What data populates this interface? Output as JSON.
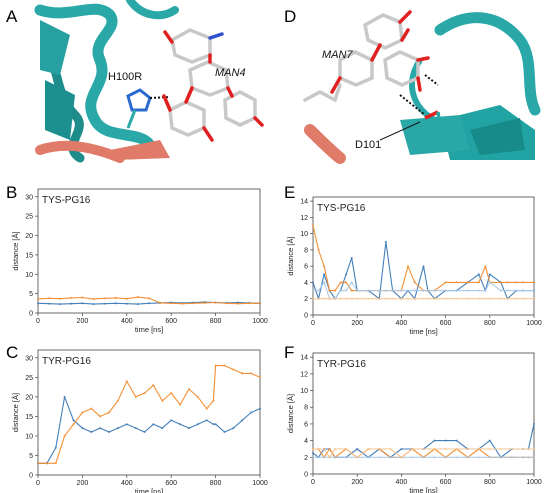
{
  "figure": {
    "panel_letters": [
      "A",
      "B",
      "C",
      "D",
      "E",
      "F"
    ],
    "structure_labels": {
      "A_residue": "H100R",
      "A_ligand": "MAN4",
      "D_residue": "D101",
      "D_ligand": "MAN7"
    },
    "colors": {
      "series_blue": "#3a78b5",
      "series_orange": "#f28a2a",
      "series_blue_light": "#a9c8e6",
      "series_orange_light": "#f7c48f",
      "ribbon": "#2aa8a8",
      "ribbon_salmon": "#e07b6a"
    }
  },
  "chart_data": [
    {
      "panel": "B",
      "type": "line",
      "title": "TYS-PG16",
      "xlabel": "time [ns]",
      "ylabel": "distance [Å]",
      "xlim": [
        0,
        1000
      ],
      "ylim": [
        0,
        32
      ],
      "xticks": [
        0,
        200,
        400,
        600,
        800,
        1000
      ],
      "yticks": [
        0,
        5,
        10,
        15,
        20,
        25,
        30
      ],
      "x": [
        0,
        50,
        100,
        150,
        200,
        250,
        300,
        350,
        400,
        450,
        500,
        550,
        600,
        650,
        700,
        750,
        800,
        850,
        900,
        950,
        1000
      ],
      "series": [
        {
          "values": [
            2.5,
            2.4,
            2.3,
            2.4,
            2.5,
            2.3,
            2.4,
            2.5,
            2.4,
            2.3,
            2.5,
            2.6,
            2.7,
            2.6,
            2.7,
            2.8,
            2.7,
            2.6,
            2.7,
            2.6,
            2.5
          ]
        },
        {
          "values": [
            3.6,
            3.8,
            3.7,
            3.9,
            4.0,
            3.6,
            3.8,
            3.9,
            3.7,
            4.1,
            3.8,
            2.6,
            2.5,
            2.4,
            2.5,
            2.6,
            2.7,
            2.5,
            2.4,
            2.5,
            2.5
          ]
        }
      ]
    },
    {
      "panel": "C",
      "type": "line",
      "title": "TYR-PG16",
      "xlabel": "time [ns]",
      "ylabel": "distance [Å]",
      "xlim": [
        0,
        1000
      ],
      "ylim": [
        0,
        32
      ],
      "xticks": [
        0,
        200,
        400,
        600,
        800,
        1000
      ],
      "yticks": [
        0,
        5,
        10,
        15,
        20,
        25,
        30
      ],
      "x": [
        0,
        40,
        80,
        120,
        160,
        200,
        240,
        280,
        320,
        360,
        400,
        440,
        480,
        520,
        560,
        600,
        640,
        680,
        720,
        760,
        790,
        800,
        840,
        880,
        920,
        960,
        1000
      ],
      "series": [
        {
          "values": [
            3,
            3,
            7,
            20,
            14,
            12,
            11,
            12,
            11,
            12,
            13,
            12,
            11,
            13,
            12,
            14,
            13,
            12,
            13,
            14,
            13,
            13,
            11,
            12,
            14,
            16,
            17
          ]
        },
        {
          "values": [
            3,
            3,
            3,
            10,
            13,
            16,
            17,
            15,
            16,
            19,
            24,
            20,
            21,
            23,
            19,
            21,
            18,
            22,
            20,
            17,
            19,
            28,
            28,
            27,
            26,
            26,
            25
          ]
        }
      ]
    },
    {
      "panel": "E",
      "type": "line",
      "title": "TYS-PG16",
      "xlabel": "time [ns]",
      "ylabel": "distance [Å]",
      "xlim": [
        0,
        1000
      ],
      "ylim": [
        0,
        14.5
      ],
      "xticks": [
        0,
        200,
        400,
        600,
        800,
        1000
      ],
      "yticks": [
        0,
        2,
        4,
        6,
        8,
        10,
        12,
        14
      ],
      "x": [
        0,
        25,
        50,
        75,
        100,
        125,
        150,
        175,
        200,
        250,
        300,
        330,
        360,
        400,
        430,
        460,
        500,
        520,
        550,
        600,
        650,
        700,
        750,
        780,
        800,
        850,
        880,
        920,
        950,
        1000
      ],
      "series": [
        {
          "values": [
            4,
            2,
            5,
            3,
            2,
            3,
            5,
            7,
            3,
            3,
            2,
            9,
            3,
            2,
            3,
            2,
            6,
            3,
            2,
            3,
            3,
            4,
            5,
            3,
            5,
            4,
            2,
            3,
            3,
            3
          ]
        },
        {
          "values": [
            11,
            8,
            6,
            3,
            3,
            4,
            4,
            3,
            3,
            3,
            3,
            3,
            3,
            3,
            6,
            4,
            3,
            3,
            3,
            4,
            4,
            4,
            4,
            6,
            4,
            4,
            4,
            4,
            4,
            4
          ]
        },
        {
          "values": [
            3,
            3,
            4,
            2,
            2,
            3,
            3,
            4,
            3,
            3,
            3,
            3,
            3,
            3,
            3,
            3,
            3,
            3,
            3,
            3,
            3,
            3,
            3,
            3,
            4,
            3,
            3,
            3,
            3,
            3
          ]
        },
        {
          "values": [
            2,
            2,
            2,
            2,
            2,
            2,
            2,
            2,
            2,
            2,
            2,
            2,
            2,
            2,
            2,
            2,
            2,
            2,
            2,
            2,
            2,
            2,
            2,
            2,
            2,
            2,
            2,
            2,
            2,
            2
          ]
        }
      ]
    },
    {
      "panel": "F",
      "type": "line",
      "title": "TYR-PG16",
      "xlabel": "time [ns]",
      "ylabel": "distance [Å]",
      "xlim": [
        0,
        1000
      ],
      "ylim": [
        0,
        14.5
      ],
      "xticks": [
        0,
        200,
        400,
        600,
        800,
        1000
      ],
      "yticks": [
        0,
        2,
        4,
        6,
        8,
        10,
        12,
        14
      ],
      "x": [
        0,
        25,
        50,
        75,
        100,
        150,
        200,
        250,
        300,
        350,
        400,
        450,
        500,
        550,
        600,
        650,
        700,
        750,
        800,
        850,
        900,
        950,
        975,
        1000
      ],
      "series": [
        {
          "values": [
            2.5,
            2,
            3,
            3,
            2,
            2,
            3,
            2,
            3,
            2,
            3,
            3,
            3,
            4,
            4,
            4,
            3,
            3,
            4,
            2,
            3,
            3,
            3,
            6
          ]
        },
        {
          "values": [
            3,
            3,
            2,
            3,
            2,
            3,
            2,
            3,
            3,
            2,
            2,
            3,
            2,
            3,
            2,
            3,
            2,
            3,
            2,
            2,
            2,
            2,
            2,
            2
          ]
        },
        {
          "values": [
            2,
            2,
            2,
            2,
            2,
            2,
            2,
            2,
            2,
            2,
            2,
            2,
            2,
            2,
            2,
            2,
            2,
            2,
            2,
            2,
            2,
            2,
            2,
            2
          ]
        },
        {
          "values": [
            3,
            3,
            3,
            2,
            3,
            3,
            2,
            3,
            3,
            3,
            2,
            3,
            3,
            3,
            3,
            3,
            3,
            3,
            3,
            3,
            3,
            3,
            3,
            3
          ]
        }
      ]
    }
  ]
}
